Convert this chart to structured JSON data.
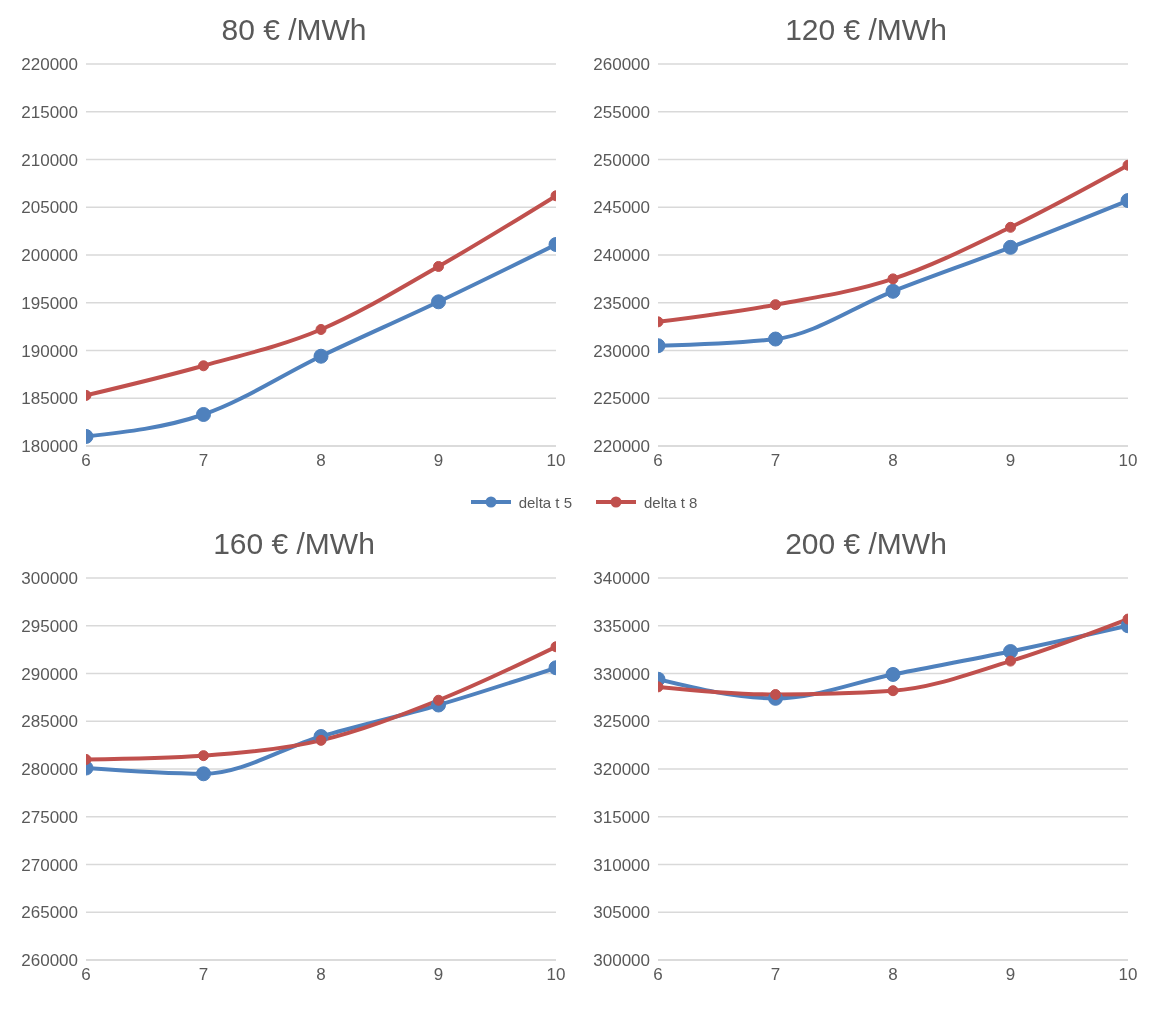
{
  "chart_data": [
    {
      "type": "line",
      "title": "80 € /MWh",
      "x": [
        6,
        7,
        8,
        9,
        10
      ],
      "xlim": [
        6,
        10
      ],
      "xticks": [
        6,
        7,
        8,
        9,
        10
      ],
      "ylim": [
        180000,
        220000
      ],
      "yticks": [
        180000,
        185000,
        190000,
        195000,
        200000,
        205000,
        210000,
        215000,
        220000
      ],
      "grid": "y",
      "marker": "circle",
      "legend": "bottom",
      "series": [
        {
          "name": "delta t 5",
          "color": "#4f81bd",
          "values": [
            181000,
            183300,
            189400,
            195100,
            201100
          ]
        },
        {
          "name": "delta t 8",
          "color": "#c0504d",
          "values": [
            185300,
            188400,
            192200,
            198800,
            206200
          ]
        }
      ]
    },
    {
      "type": "line",
      "title": "120 € /MWh",
      "x": [
        6,
        7,
        8,
        9,
        10
      ],
      "xlim": [
        6,
        10
      ],
      "xticks": [
        6,
        7,
        8,
        9,
        10
      ],
      "ylim": [
        220000,
        260000
      ],
      "yticks": [
        220000,
        225000,
        230000,
        235000,
        240000,
        245000,
        250000,
        255000,
        260000
      ],
      "grid": "y",
      "marker": "circle",
      "series": [
        {
          "color": "#4f81bd",
          "values": [
            230500,
            231200,
            236200,
            240800,
            245700
          ]
        },
        {
          "color": "#c0504d",
          "values": [
            233000,
            234800,
            237500,
            242900,
            249400
          ]
        }
      ]
    },
    {
      "type": "line",
      "title": "160 € /MWh",
      "x": [
        6,
        7,
        8,
        9,
        10
      ],
      "xlim": [
        6,
        10
      ],
      "xticks": [
        6,
        7,
        8,
        9,
        10
      ],
      "ylim": [
        260000,
        300000
      ],
      "yticks": [
        260000,
        265000,
        270000,
        275000,
        280000,
        285000,
        290000,
        295000,
        300000
      ],
      "grid": "y",
      "marker": "circle",
      "series": [
        {
          "color": "#4f81bd",
          "values": [
            280100,
            279500,
            283400,
            286700,
            290600
          ]
        },
        {
          "color": "#c0504d",
          "values": [
            281000,
            281400,
            283000,
            287200,
            292800
          ]
        }
      ]
    },
    {
      "type": "line",
      "title": "200 € /MWh",
      "x": [
        6,
        7,
        8,
        9,
        10
      ],
      "xlim": [
        6,
        10
      ],
      "xticks": [
        6,
        7,
        8,
        9,
        10
      ],
      "ylim": [
        300000,
        340000
      ],
      "yticks": [
        300000,
        305000,
        310000,
        315000,
        320000,
        325000,
        330000,
        335000,
        340000
      ],
      "grid": "y",
      "marker": "circle",
      "series": [
        {
          "color": "#4f81bd",
          "values": [
            329400,
            327400,
            329900,
            332300,
            335000
          ]
        },
        {
          "color": "#c0504d",
          "values": [
            328600,
            327800,
            328200,
            331300,
            335700
          ]
        }
      ]
    }
  ]
}
